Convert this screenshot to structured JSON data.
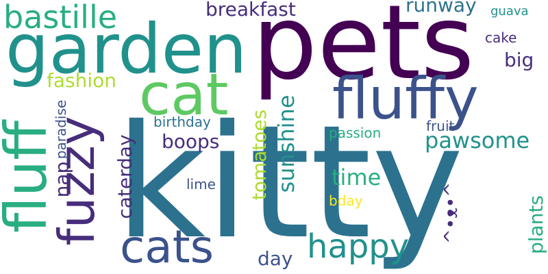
{
  "palette": {
    "dark_purple": "#440154",
    "indigo": "#472d7b",
    "blue_purple": "#3b528b",
    "steel_blue": "#2c728e",
    "teal": "#21918c",
    "sea_green": "#28ae80",
    "green": "#5ec962",
    "lime": "#addc30",
    "yellow": "#fde725"
  },
  "words": {
    "kitty": "kitty",
    "pets": "pets",
    "garden": "garden",
    "fluffy": "fluffy",
    "fluff": "fluff",
    "cat": "cat",
    "fuzzy": "fuzzy",
    "cats": "cats",
    "happy": "happy",
    "bastille": "bastille",
    "breakfast": "breakfast",
    "runway": "runway",
    "guava": "guava",
    "cake": "cake",
    "big": "big",
    "fashion": "fashion",
    "paradise": "paradise",
    "birthday": "birthday",
    "boops": "boops",
    "caterday": "caterday",
    "nap": "nap",
    "tomatoes": "tomatoes",
    "sunshine": "sunshine",
    "time": "time",
    "pawsome": "pawsome",
    "fruit": "fruit",
    "passion": "passion",
    "lime": "lime",
    "bday": "bday",
    "day": "day",
    "plants": "plants",
    "emoticon": "^•ᴥ•^"
  }
}
